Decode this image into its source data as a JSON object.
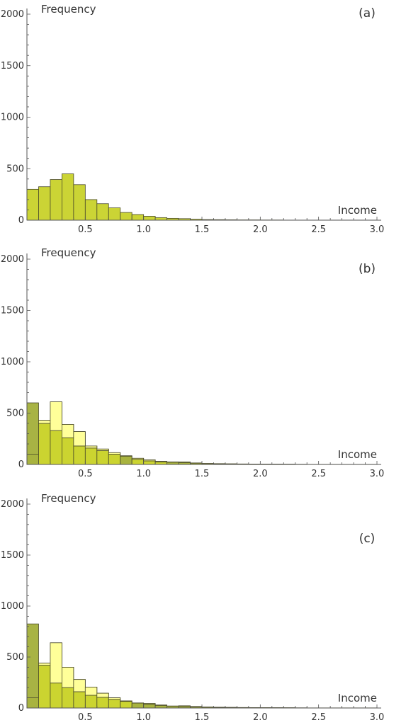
{
  "colors": {
    "bar_fill": "#c8d22a",
    "bar_light": "#ffff99",
    "bar_dark": "#a3af3a",
    "bar_stroke": "#4a4a2a",
    "axis": "#555555"
  },
  "chart_data": [
    {
      "type": "bar",
      "panel_label": "(a)",
      "xlabel": "Income",
      "ylabel": "Frequency",
      "xlim": [
        0,
        3.0
      ],
      "ylim": [
        0,
        2000
      ],
      "x_ticks": [
        "0.5",
        "1.0",
        "1.5",
        "2.0",
        "2.5",
        "3.0"
      ],
      "y_ticks": [
        "0",
        "500",
        "1000",
        "1500",
        "2000"
      ],
      "bin_width": 0.1,
      "bin_start": 0.0,
      "series": [
        {
          "style": "main",
          "values": [
            300,
            325,
            395,
            450,
            345,
            200,
            160,
            120,
            75,
            55,
            38,
            25,
            18,
            15,
            10,
            6,
            5,
            4,
            3,
            3,
            2,
            2,
            1,
            1,
            1,
            1,
            1,
            1,
            1,
            1
          ]
        }
      ]
    },
    {
      "type": "bar",
      "panel_label": "(b)",
      "xlabel": "Income",
      "ylabel": "Frequency",
      "xlim": [
        0,
        3.0
      ],
      "ylim": [
        0,
        2000
      ],
      "x_ticks": [
        "0.5",
        "1.0",
        "1.5",
        "2.0",
        "2.5",
        "3.0"
      ],
      "y_ticks": [
        "0",
        "500",
        "1000",
        "1500",
        "2000"
      ],
      "bin_width": 0.1,
      "bin_start": 0.0,
      "series": [
        {
          "style": "light",
          "values": [
            100,
            430,
            610,
            390,
            320,
            180,
            150,
            115,
            80,
            60,
            45,
            30,
            22,
            18,
            12,
            8,
            6,
            5,
            4,
            3,
            3,
            2,
            2,
            1,
            1,
            1,
            1,
            1,
            1,
            1
          ]
        },
        {
          "style": "main",
          "values": [
            600,
            400,
            330,
            260,
            180,
            160,
            135,
            100,
            85,
            50,
            35,
            25,
            25,
            25,
            15,
            10,
            8,
            6,
            5,
            4,
            3,
            3,
            2,
            2,
            1,
            1,
            1,
            1,
            1,
            1
          ]
        }
      ]
    },
    {
      "type": "bar",
      "panel_label": "(c)",
      "xlabel": "Income",
      "ylabel": "Frequency",
      "xlim": [
        0,
        3.0
      ],
      "ylim": [
        0,
        2000
      ],
      "x_ticks": [
        "0.5",
        "1.0",
        "1.5",
        "2.0",
        "2.5",
        "3.0"
      ],
      "y_ticks": [
        "0",
        "500",
        "1000",
        "1500",
        "2000"
      ],
      "bin_width": 0.1,
      "bin_start": 0.0,
      "series": [
        {
          "style": "light",
          "values": [
            100,
            440,
            640,
            400,
            280,
            205,
            145,
            100,
            70,
            48,
            35,
            25,
            18,
            14,
            10,
            8,
            6,
            5,
            4,
            3,
            3,
            2,
            2,
            1,
            1,
            1,
            1,
            1,
            1,
            1
          ]
        },
        {
          "style": "main",
          "values": [
            825,
            420,
            245,
            200,
            160,
            125,
            105,
            85,
            65,
            50,
            45,
            30,
            20,
            22,
            15,
            10,
            8,
            6,
            5,
            4,
            3,
            3,
            2,
            2,
            1,
            1,
            1,
            1,
            1,
            1
          ]
        }
      ]
    }
  ]
}
